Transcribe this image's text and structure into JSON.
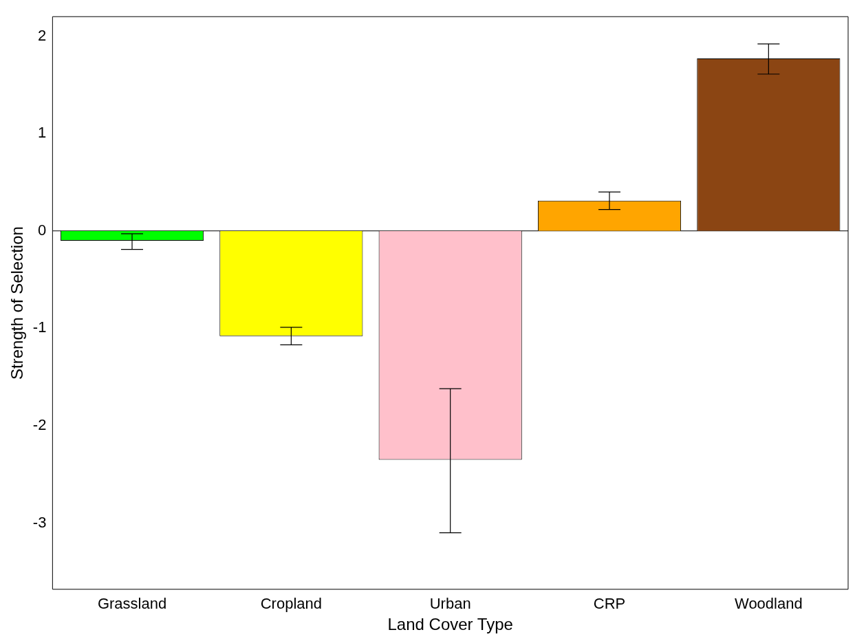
{
  "chart_data": {
    "type": "bar",
    "xlabel": "Land Cover Type",
    "ylabel": "Strength of Selection",
    "categories": [
      "Grassland",
      "Cropland",
      "Urban",
      "CRP",
      "Woodland"
    ],
    "values": [
      -0.1,
      -1.08,
      -2.35,
      0.31,
      1.77
    ],
    "colors": [
      "#00ff00",
      "#ffff00",
      "#ffc0cb",
      "#ffa500",
      "#8b4513"
    ],
    "errors": [
      [
        -0.19,
        -0.03
      ],
      [
        -1.17,
        -0.99
      ],
      [
        -3.1,
        -1.62
      ],
      [
        0.22,
        0.4
      ],
      [
        1.61,
        1.92
      ]
    ],
    "ylim": [
      -3.68,
      2.2
    ],
    "yticks": [
      -3,
      -2,
      -1,
      0,
      1,
      2
    ],
    "ref_lines": [
      {
        "axis": "y",
        "value": 0,
        "color": "#000000"
      }
    ],
    "grid": false,
    "legend": false
  }
}
